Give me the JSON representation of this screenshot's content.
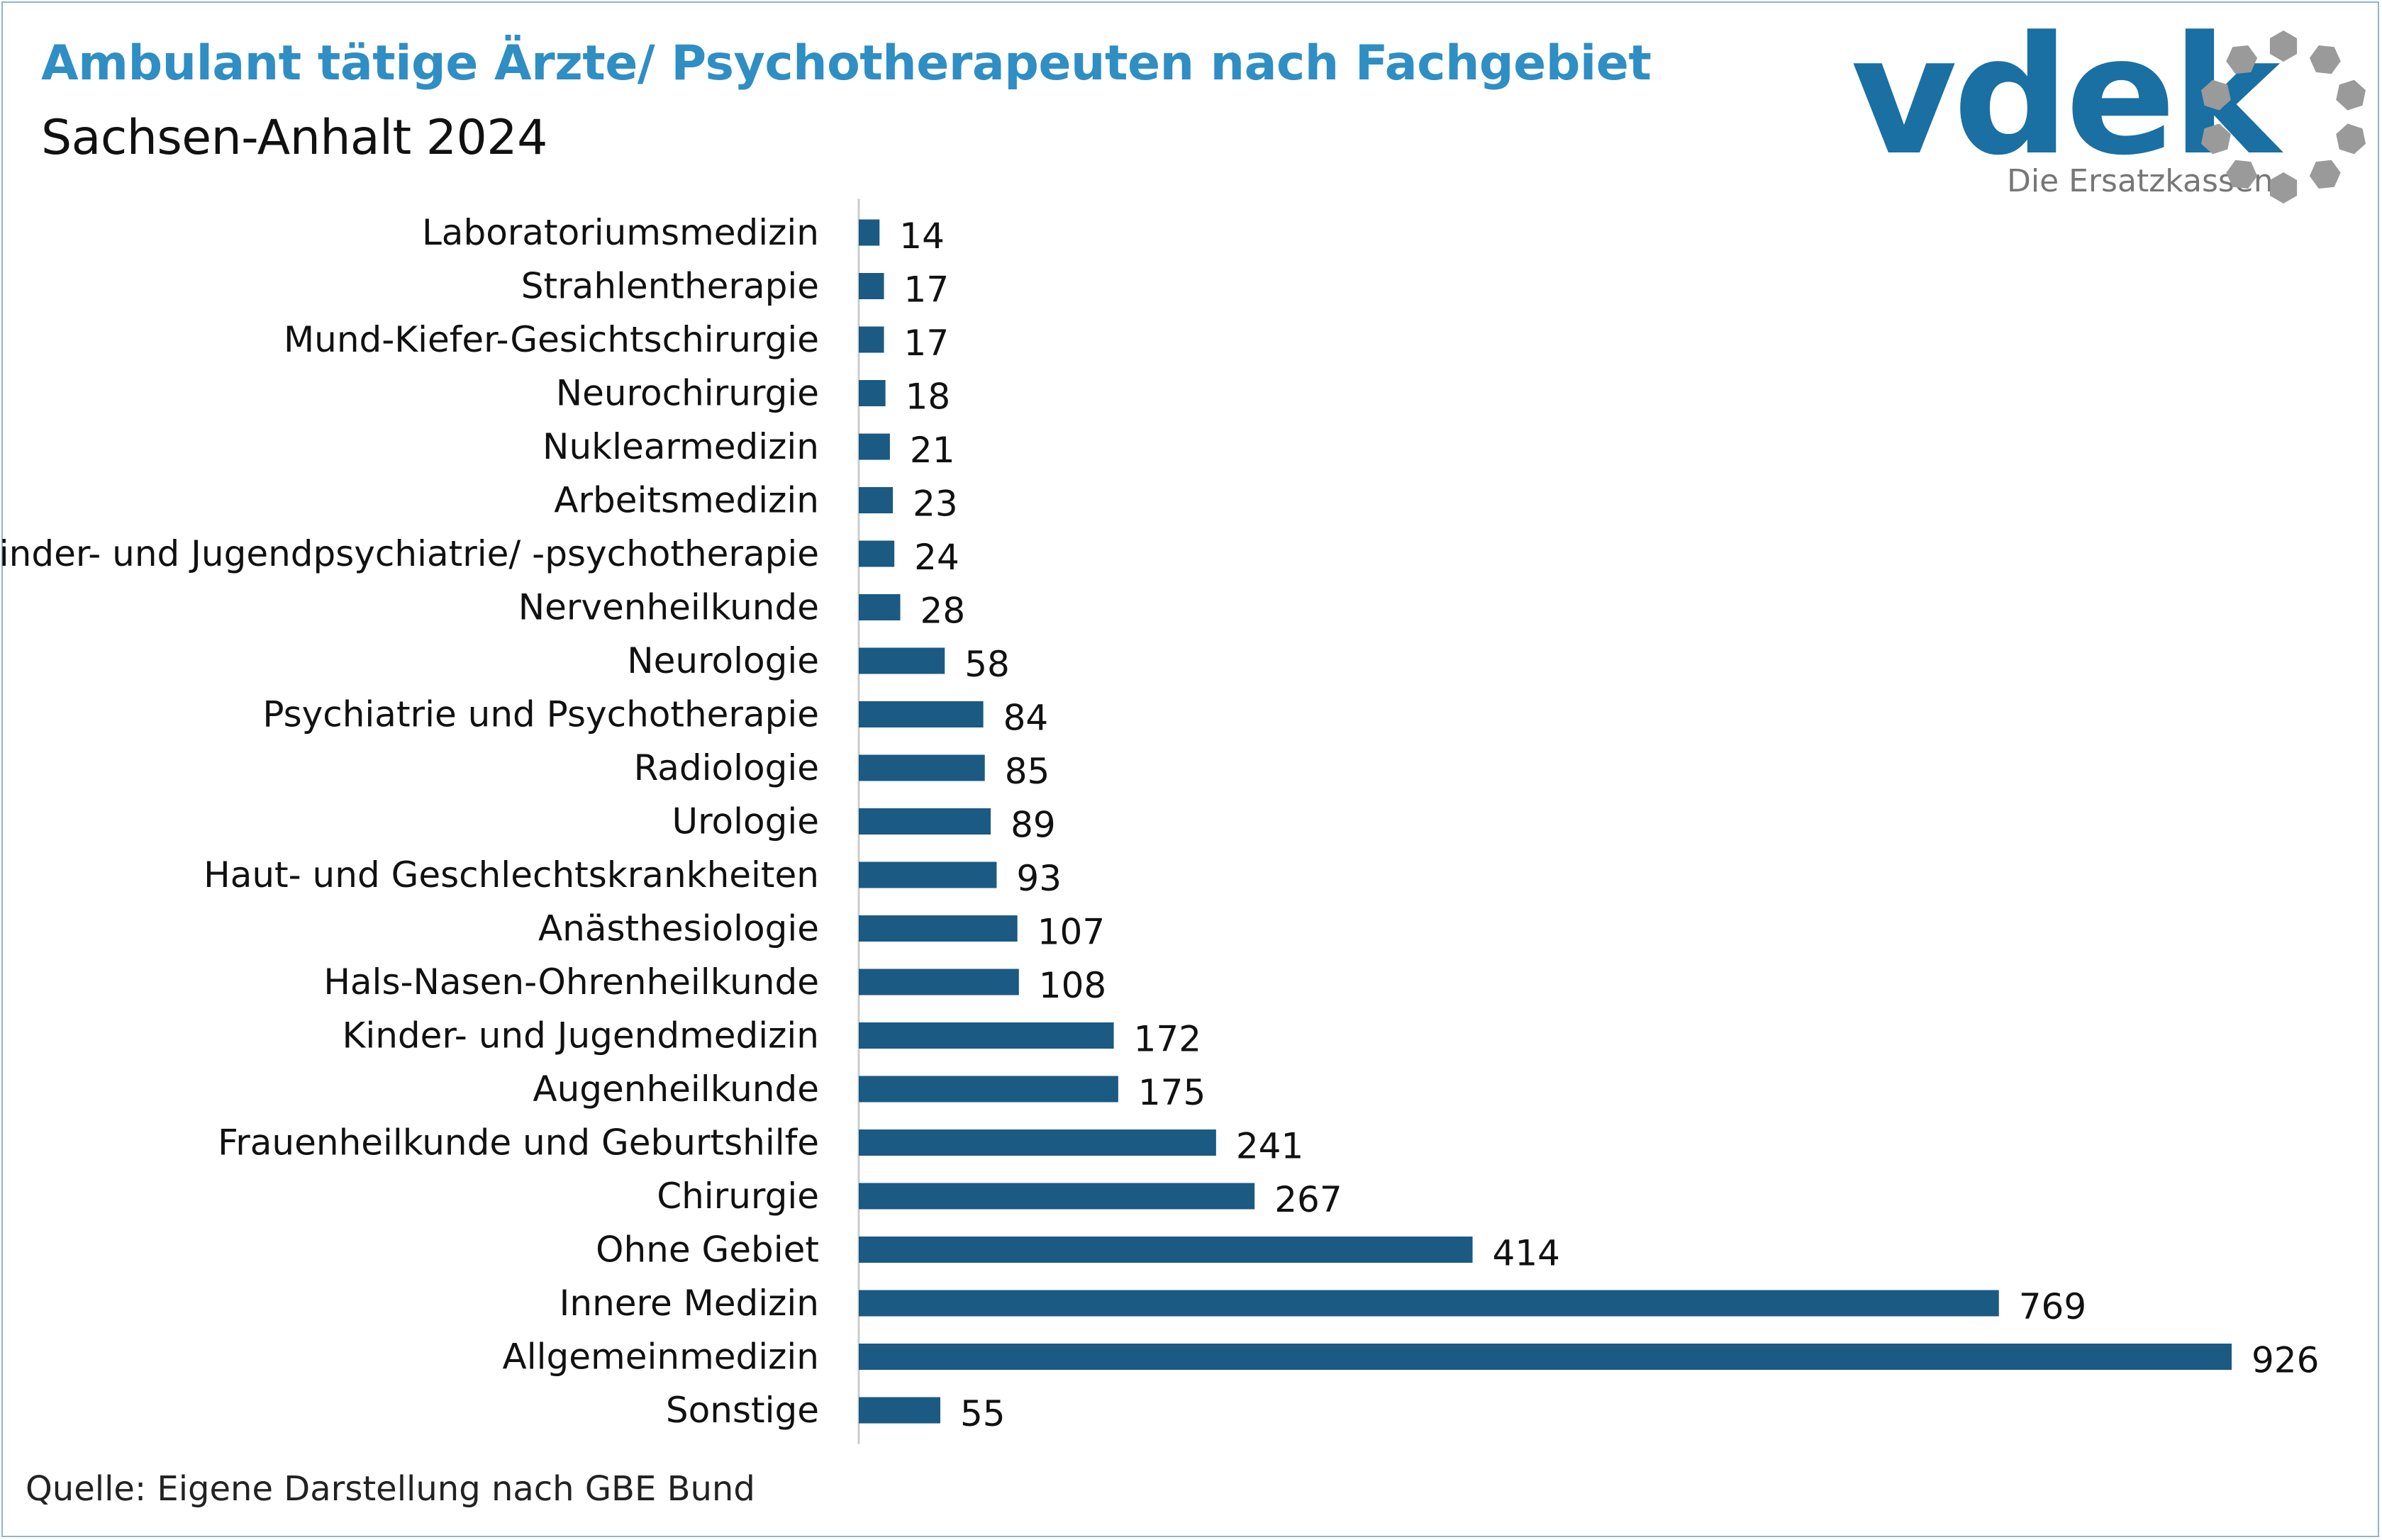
{
  "header": {
    "title": "Ambulant tätige Ärzte/ Psychotherapeuten nach Fachgebiet",
    "subtitle": "Sachsen-Anhalt 2024"
  },
  "logo": {
    "wordmark": "vdek",
    "tagline": "Die Ersatzkassen",
    "wordmark_color": "#1a6fa3",
    "ring_color": "#9a9a9a"
  },
  "footer": {
    "source": "Quelle: Eigene Darstellung nach GBE Bund"
  },
  "chart_data": {
    "type": "bar",
    "orientation": "horizontal",
    "title": "Ambulant tätige Ärzte/ Psychotherapeuten nach Fachgebiet",
    "subtitle": "Sachsen-Anhalt 2024",
    "xlabel": "",
    "ylabel": "",
    "bar_color": "#1b5a82",
    "grid": false,
    "legend": "none",
    "categories": [
      "Laboratoriumsmedizin",
      "Strahlentherapie",
      "Mund-Kiefer-Gesichtschirurgie",
      "Neurochirurgie",
      "Nuklearmedizin",
      "Arbeitsmedizin",
      "Kinder- und Jugendpsychiatrie/ -psychotherapie",
      "Nervenheilkunde",
      "Neurologie",
      "Psychiatrie und Psychotherapie",
      "Radiologie",
      "Urologie",
      "Haut- und Geschlechtskrankheiten",
      "Anästhesiologie",
      "Hals-Nasen-Ohrenheilkunde",
      "Kinder- und Jugendmedizin",
      "Augenheilkunde",
      "Frauenheilkunde und Geburtshilfe",
      "Chirurgie",
      "Ohne Gebiet",
      "Innere Medizin",
      "Allgemeinmedizin",
      "Sonstige"
    ],
    "values": [
      14,
      17,
      17,
      18,
      21,
      23,
      24,
      28,
      58,
      84,
      85,
      89,
      93,
      107,
      108,
      172,
      175,
      241,
      267,
      414,
      769,
      926,
      55
    ],
    "xlim": [
      0,
      926
    ]
  }
}
